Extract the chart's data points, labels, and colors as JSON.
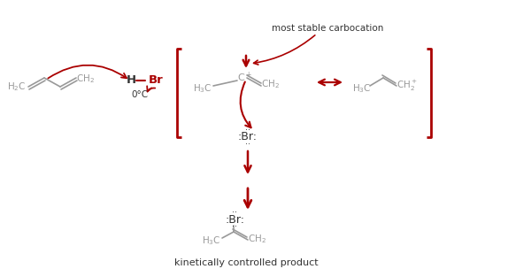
{
  "bg_color": "#ffffff",
  "gray": "#999999",
  "red": "#aa0000",
  "dark": "#333333",
  "label_msc": "most stable carbocation",
  "label_kcp": "kinetically controlled product",
  "label_temp": "0°C"
}
